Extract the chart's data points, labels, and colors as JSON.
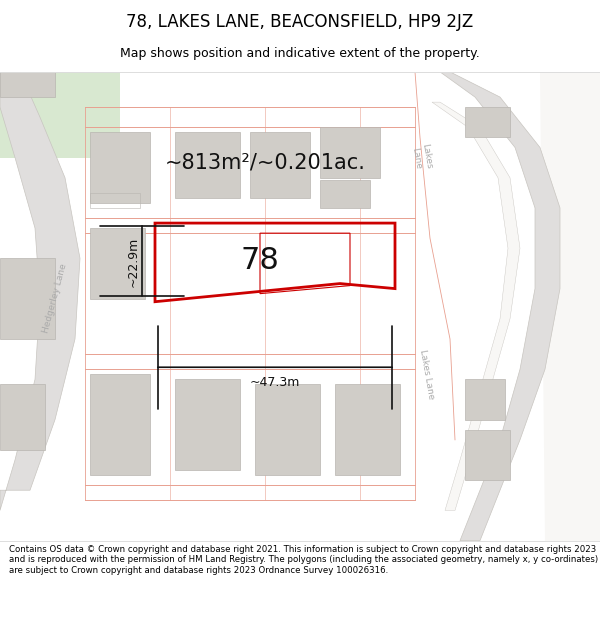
{
  "title": "78, LAKES LANE, BEACONSFIELD, HP9 2JZ",
  "subtitle": "Map shows position and indicative extent of the property.",
  "area_text": "~813m²/~0.201ac.",
  "property_number": "78",
  "width_label": "~47.3m",
  "height_label": "~22.9m",
  "footer_text": "Contains OS data © Crown copyright and database right 2021. This information is subject to Crown copyright and database rights 2023 and is reproduced with the permission of HM Land Registry. The polygons (including the associated geometry, namely x, y co-ordinates) are subject to Crown copyright and database rights 2023 Ordnance Survey 100026316.",
  "bg_color": "#ffffff",
  "map_bg": "#f8f7f5",
  "road_line_color": "#e8a090",
  "road_fill_color": "#f5ede8",
  "plot_stroke": "#cc0000",
  "building_fill": "#d0cdc8",
  "building_ec": "#b8b5b0",
  "dim_color": "#111111",
  "road_label_color": "#aaaaaa",
  "title_color": "#000000",
  "footer_color": "#000000",
  "green_area": "#d8e8d0",
  "road_gray": "#e0dedd",
  "road_gray_ec": "#c8c5c0"
}
